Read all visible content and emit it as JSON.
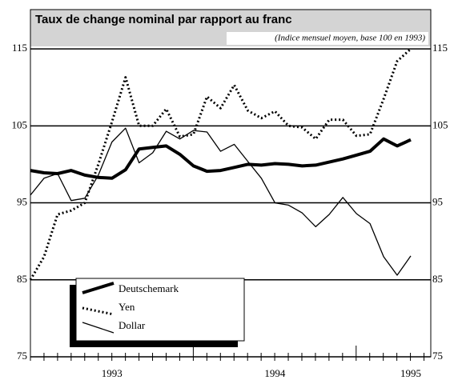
{
  "chart_data": {
    "type": "line",
    "title": "Taux de change nominal par rapport au franc",
    "subtitle": "(Indice mensuel moyen, base 100 en 1993)",
    "categories": [
      null,
      null,
      null,
      null,
      null,
      null,
      "1993",
      null,
      null,
      null,
      null,
      null,
      null,
      null,
      null,
      null,
      null,
      null,
      "1994",
      null,
      null,
      null,
      null,
      null,
      null,
      null,
      null,
      null,
      "1995"
    ],
    "series": [
      {
        "name": "Deutschemark",
        "color": "#000000",
        "values": [
          99.2,
          98.9,
          98.8,
          99.2,
          98.6,
          98.3,
          98.2,
          99.3,
          102,
          102.2,
          102.4,
          101.3,
          99.8,
          99.1,
          99.2,
          99.6,
          100,
          99.9,
          100.1,
          100,
          99.8,
          99.9,
          100.3,
          100.7,
          101.2,
          101.7,
          103.3,
          102.4,
          103.2
        ]
      },
      {
        "name": "Yen",
        "color": "#000000",
        "values": [
          85,
          88,
          93.5,
          94,
          95,
          100,
          105.5,
          111.3,
          105,
          105,
          107.2,
          103.6,
          103.9,
          108.8,
          107.3,
          110.3,
          107,
          106,
          106.9,
          105,
          104.8,
          103.3,
          105.8,
          105.8,
          103.7,
          103.9,
          108.5,
          113.4,
          115
        ]
      },
      {
        "name": "Dollar",
        "color": "#000000",
        "values": [
          96,
          98.2,
          98.8,
          95.3,
          95.6,
          98.6,
          102.9,
          104.7,
          100.2,
          101.5,
          104.3,
          103.3,
          104.4,
          104.2,
          101.7,
          102.6,
          100.4,
          98.2,
          95,
          94.7,
          93.7,
          91.9,
          93.5,
          95.7,
          93.6,
          92.3,
          88,
          85.6,
          88.1
        ]
      }
    ],
    "ylim": [
      75,
      120
    ],
    "yticks": [
      75,
      85,
      95,
      105,
      115
    ],
    "grid": true
  }
}
